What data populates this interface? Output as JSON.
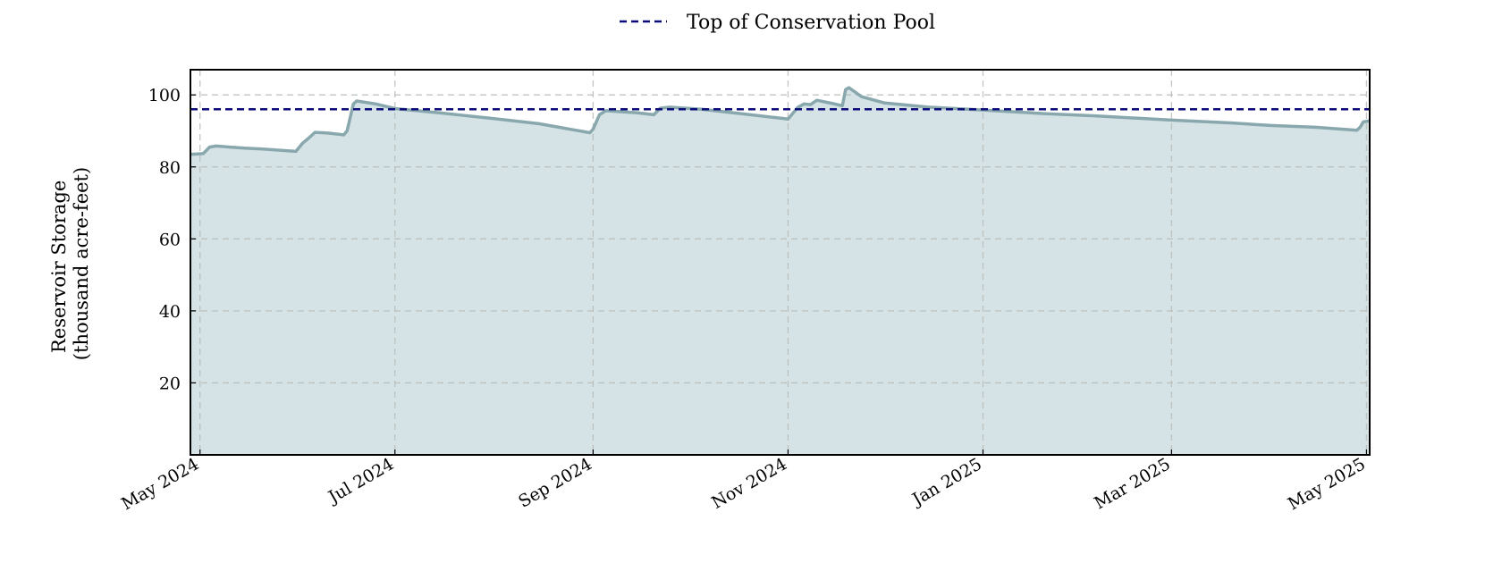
{
  "chart_data": {
    "type": "area",
    "ylabel": "Reservoir Storage\n(thousand acre-feet)",
    "xlabel": "",
    "grid": true,
    "legend_placement": "top-center",
    "x_range": [
      "2024-04-28",
      "2025-05-02"
    ],
    "ylim": [
      0,
      107
    ],
    "y_ticks": [
      20,
      40,
      60,
      80,
      100
    ],
    "x_ticks": [
      {
        "date": "2024-05-01",
        "label": "May 2024"
      },
      {
        "date": "2024-07-01",
        "label": "Jul 2024"
      },
      {
        "date": "2024-09-01",
        "label": "Sep 2024"
      },
      {
        "date": "2024-11-01",
        "label": "Nov 2024"
      },
      {
        "date": "2025-01-01",
        "label": "Jan 2025"
      },
      {
        "date": "2025-03-01",
        "label": "Mar 2025"
      },
      {
        "date": "2025-05-01",
        "label": "May 2025"
      }
    ],
    "reference_lines": [
      {
        "name": "Top of Conservation Pool",
        "y": 96,
        "style": "dashed",
        "color": "#0b0b7a"
      }
    ],
    "series": [
      {
        "color": "#89a8ae",
        "fill": "#d5e3e6",
        "points": [
          [
            "2024-04-28",
            83.5
          ],
          [
            "2024-05-02",
            83.7
          ],
          [
            "2024-05-04",
            85.5
          ],
          [
            "2024-05-06",
            85.8
          ],
          [
            "2024-05-15",
            85.2
          ],
          [
            "2024-05-20",
            85.0
          ],
          [
            "2024-05-31",
            84.3
          ],
          [
            "2024-06-02",
            86.5
          ],
          [
            "2024-06-04",
            88.0
          ],
          [
            "2024-06-06",
            89.6
          ],
          [
            "2024-06-10",
            89.4
          ],
          [
            "2024-06-15",
            88.9
          ],
          [
            "2024-06-16",
            90.0
          ],
          [
            "2024-06-18",
            97.5
          ],
          [
            "2024-06-19",
            98.3
          ],
          [
            "2024-06-25",
            97.5
          ],
          [
            "2024-07-01",
            96.2
          ],
          [
            "2024-07-15",
            95.0
          ],
          [
            "2024-08-01",
            93.4
          ],
          [
            "2024-08-15",
            92.0
          ],
          [
            "2024-08-31",
            89.5
          ],
          [
            "2024-09-01",
            90.5
          ],
          [
            "2024-09-03",
            94.5
          ],
          [
            "2024-09-05",
            95.6
          ],
          [
            "2024-09-15",
            95.0
          ],
          [
            "2024-09-20",
            94.5
          ],
          [
            "2024-09-22",
            96.3
          ],
          [
            "2024-09-25",
            96.6
          ],
          [
            "2024-10-05",
            96.0
          ],
          [
            "2024-10-15",
            95.0
          ],
          [
            "2024-10-30",
            93.5
          ],
          [
            "2024-11-01",
            93.3
          ],
          [
            "2024-11-04",
            96.5
          ],
          [
            "2024-11-06",
            97.5
          ],
          [
            "2024-11-08",
            97.3
          ],
          [
            "2024-11-10",
            98.5
          ],
          [
            "2024-11-15",
            97.6
          ],
          [
            "2024-11-18",
            97.0
          ],
          [
            "2024-11-19",
            101.5
          ],
          [
            "2024-11-20",
            102.0
          ],
          [
            "2024-11-24",
            99.5
          ],
          [
            "2024-12-01",
            97.8
          ],
          [
            "2024-12-15",
            96.6
          ],
          [
            "2025-01-01",
            95.8
          ],
          [
            "2025-01-20",
            94.8
          ],
          [
            "2025-02-05",
            94.2
          ],
          [
            "2025-03-01",
            93.0
          ],
          [
            "2025-03-20",
            92.2
          ],
          [
            "2025-04-01",
            91.5
          ],
          [
            "2025-04-15",
            91.0
          ],
          [
            "2025-04-28",
            90.2
          ],
          [
            "2025-04-29",
            91.0
          ],
          [
            "2025-04-30",
            92.5
          ],
          [
            "2025-05-02",
            92.8
          ]
        ]
      }
    ]
  }
}
